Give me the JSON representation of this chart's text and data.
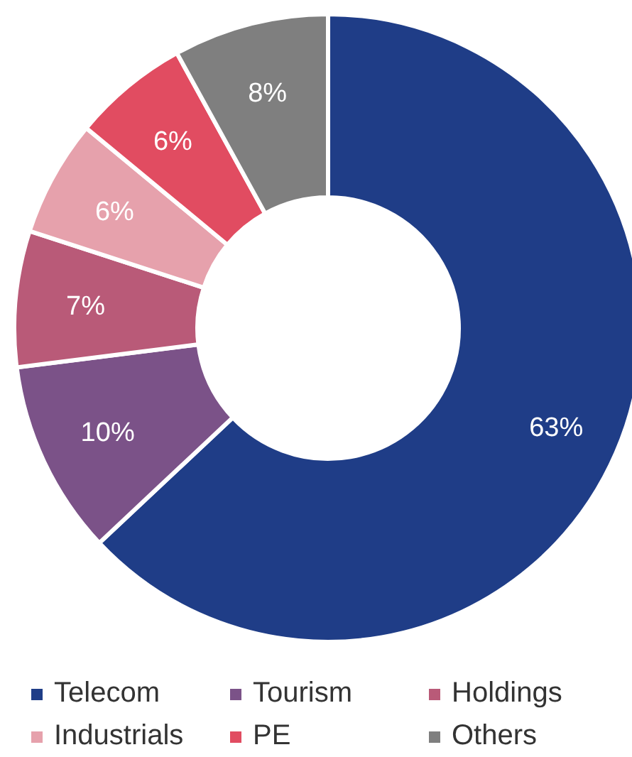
{
  "chart_data": {
    "type": "donut",
    "categories": [
      "Telecom",
      "Tourism",
      "Holdings",
      "Industrials",
      "PE",
      "Others"
    ],
    "values": [
      63,
      10,
      7,
      6,
      6,
      8
    ],
    "colors": [
      "#1f3d87",
      "#7b5288",
      "#b95a78",
      "#e6a1ac",
      "#e14c61",
      "#7f7f7f"
    ],
    "value_labels": [
      "63%",
      "10%",
      "7%",
      "6%",
      "6%",
      "8%"
    ],
    "legend": "bottom"
  }
}
